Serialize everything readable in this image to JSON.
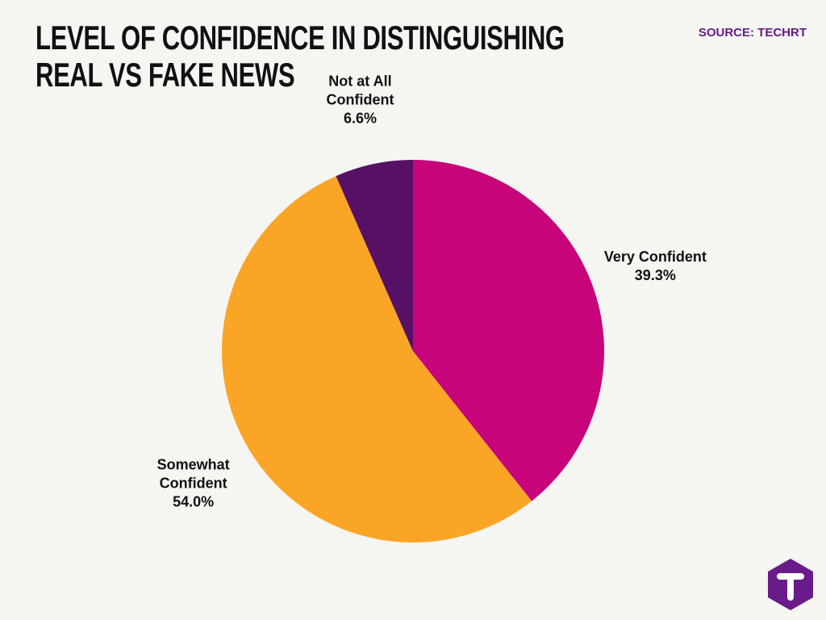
{
  "chart_data": {
    "type": "pie",
    "title": "LEVEL OF CONFIDENCE IN DISTINGUISHING REAL VS FAKE NEWS",
    "source": "SOURCE: TECHRT",
    "categories": [
      "Very Confident",
      "Somewhat Confident",
      "Not at All Confident"
    ],
    "values": [
      39.3,
      54.0,
      6.6
    ],
    "value_labels": [
      "39.3%",
      "54.0%",
      "6.6%"
    ],
    "colors": [
      "#c8047a",
      "#faa526",
      "#561164"
    ]
  }
}
